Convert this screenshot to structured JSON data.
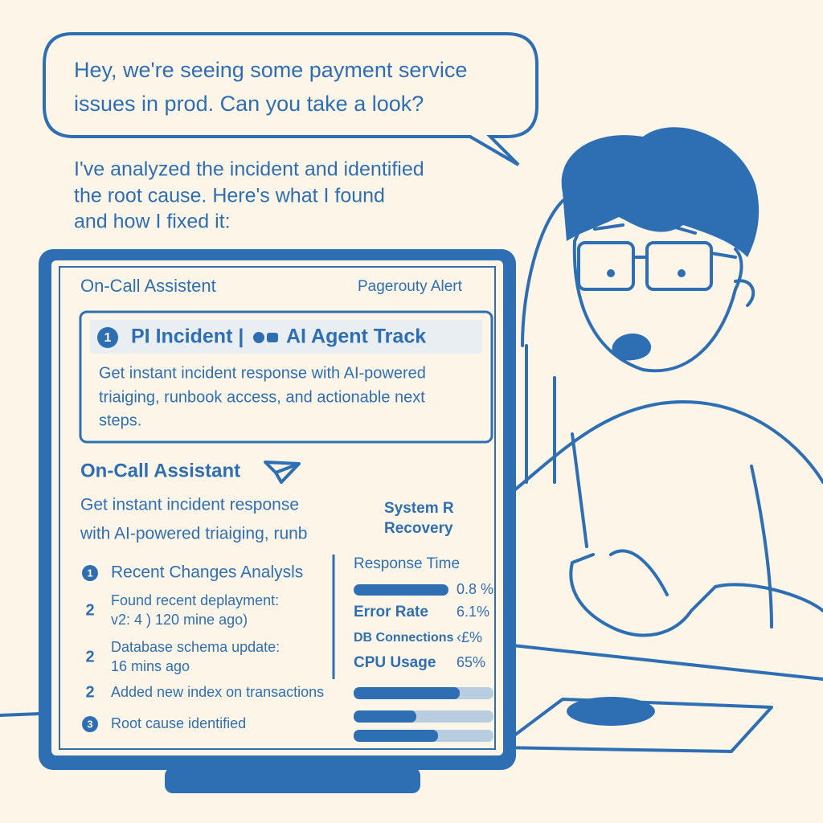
{
  "user_message": [
    "Hey, we're seeing some payment service",
    "issues in prod. Can you take a look?"
  ],
  "assistant_reply": [
    "I've analyzed the incident and identified",
    "the root cause. Here's what I found",
    "and how I fixed it:"
  ],
  "screen": {
    "header": {
      "title": "On-Call Assistent",
      "badge": "Pagerouty Alert"
    },
    "card": {
      "number": "1",
      "title_left": "PI Incident |",
      "title_right": "AI Agent Track",
      "description": [
        "Get instant incident response with AI-powered",
        "triaiging, runbook access, and actionable next",
        "steps."
      ]
    },
    "section": {
      "title": "On-Call Assistant",
      "description": [
        "Get instant incident response",
        "with AI-powered triaiging, runb"
      ],
      "recovery": [
        "System R",
        "Recovery"
      ]
    },
    "steps": [
      {
        "marker": "1",
        "lines": [
          "Recent Changes Analysls"
        ]
      },
      {
        "marker": "2",
        "lines": [
          "Found recent deplayment:",
          "v2: 4 ) 120 mine ago)"
        ]
      },
      {
        "marker": "2",
        "lines": [
          "Database schema update:",
          "16 mins ago"
        ]
      },
      {
        "marker": "2",
        "lines": [
          "Added new index on transactions"
        ]
      },
      {
        "marker": "3",
        "lines": [
          "Root cause identified"
        ]
      }
    ],
    "metrics": [
      {
        "label": "Response Time",
        "value": "0.8 %"
      },
      {
        "label": "Error Rate",
        "value": "6.1%"
      },
      {
        "label": "DB Connections",
        "value": "‹£%"
      },
      {
        "label": "CPU Usage",
        "value": "65%"
      }
    ]
  }
}
